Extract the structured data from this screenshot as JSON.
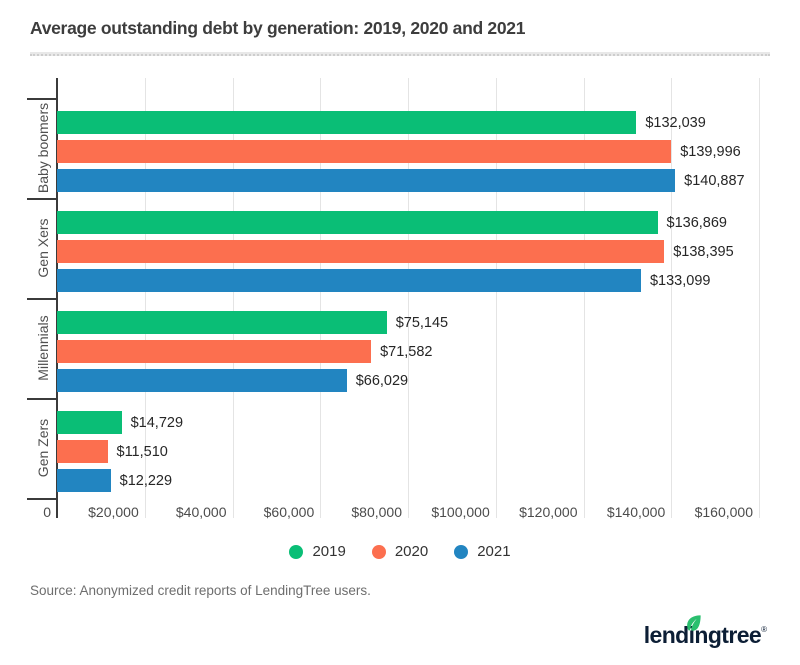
{
  "title": "Average outstanding debt by generation: 2019, 2020 and 2021",
  "source_note": "Source: Anonymized credit reports of LendingTree users.",
  "logo": {
    "text": "lendingtree",
    "registered_mark": "®",
    "text_color": "#0c1e35",
    "leaf_color": "#2abf6e"
  },
  "chart_data": {
    "type": "bar",
    "orientation": "horizontal",
    "title": "Average outstanding debt by generation: 2019, 2020 and 2021",
    "categories": [
      "Baby boomers",
      "Gen Xers",
      "Millennials",
      "Gen Zers"
    ],
    "series": [
      {
        "name": "2019",
        "color": "#0abe76",
        "values": [
          132039,
          136869,
          75145,
          14729
        ]
      },
      {
        "name": "2020",
        "color": "#fc6f4f",
        "values": [
          139996,
          138395,
          71582,
          11510
        ]
      },
      {
        "name": "2021",
        "color": "#2285c1",
        "values": [
          140887,
          133099,
          66029,
          12229
        ]
      }
    ],
    "value_label_format": "$#,###",
    "xlim": [
      0,
      160000
    ],
    "x_tick_interval": 20000,
    "x_tick_labels": [
      "0",
      "$20,000",
      "$40,000",
      "$60,000",
      "$80,000",
      "$100,000",
      "$120,000",
      "$140,000",
      "$160,000"
    ],
    "grid": true,
    "legend_position": "bottom"
  }
}
